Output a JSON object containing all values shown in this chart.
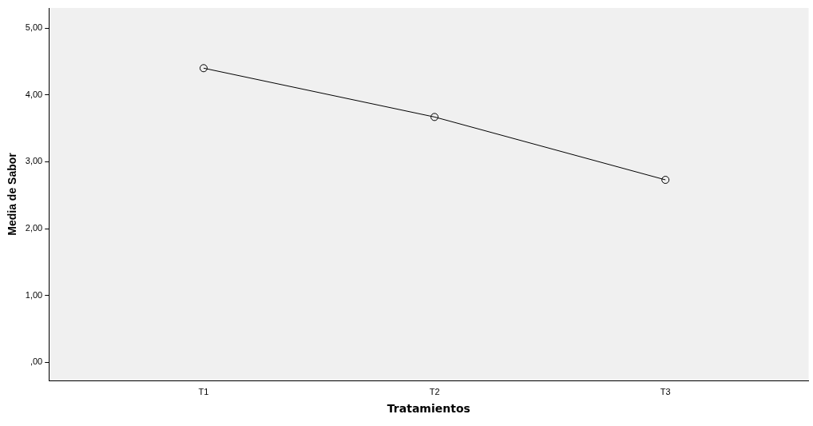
{
  "chart_data": {
    "type": "line",
    "xlabel": "Tratamientos",
    "ylabel": "Media de Sabor",
    "categories": [
      "T1",
      "T2",
      "T3"
    ],
    "series": [
      {
        "color": "#000000",
        "values": [
          4.4,
          3.67,
          2.73
        ]
      }
    ],
    "ylim": [
      -0.27,
      5.3
    ],
    "yticks": [
      {
        "value": 0,
        "label": ",00"
      },
      {
        "value": 1,
        "label": "1,00"
      },
      {
        "value": 2,
        "label": "2,00"
      },
      {
        "value": 3,
        "label": "3,00"
      },
      {
        "value": 4,
        "label": "4,00"
      },
      {
        "value": 5,
        "label": "5,00"
      }
    ],
    "grid": false,
    "legend": false,
    "marker": "circle",
    "line_style": "solid"
  }
}
